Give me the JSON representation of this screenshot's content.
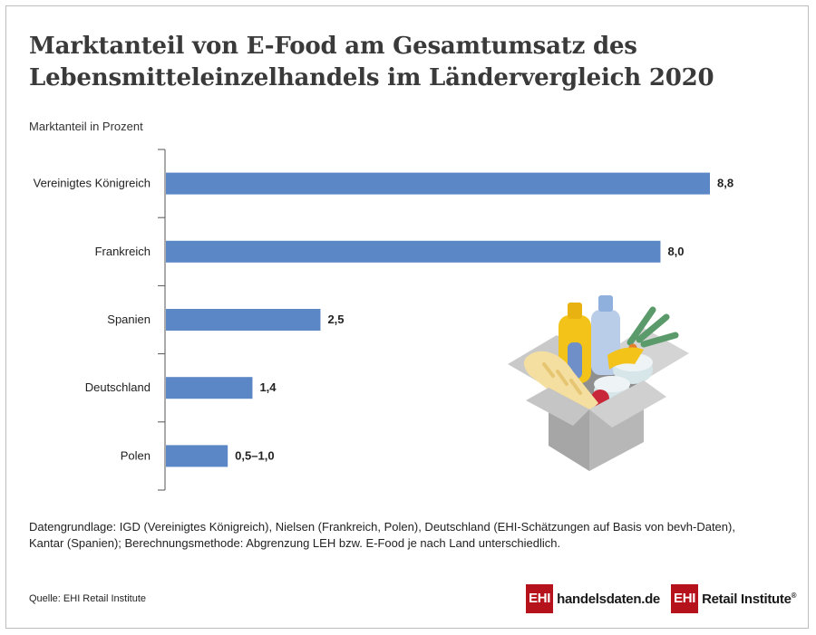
{
  "title_line1": "Marktanteil von E-Food am Gesamtumsatz des",
  "title_line2": "Lebensmitteleinzelhandels im Ländervergleich 2020",
  "ylabel": "Marktanteil in Prozent",
  "note_line1": "Datengrundlage: IGD (Vereinigtes Königreich), Nielsen (Frankreich, Polen), Deutschland (EHI-Schätzungen auf Basis von bevh-Daten),",
  "note_line2": "Kantar (Spanien); Berechnungsmethode: Abgrenzung LEH bzw. E-Food je nach Land unterschiedlich.",
  "source": "Quelle: EHI Retail Institute",
  "brand1": {
    "box": "EHI",
    "text": "handelsdaten.de"
  },
  "brand2": {
    "box": "EHI",
    "text": "Retail Institute",
    "mark": "®"
  },
  "colors": {
    "bar": "#5b87c6",
    "axis": "#555555",
    "brand_red": "#b5121b"
  },
  "illustration_icon": "grocery-box-icon",
  "chart_data": {
    "type": "bar",
    "orientation": "horizontal",
    "categories": [
      "Vereinigtes Königreich",
      "Frankreich",
      "Spanien",
      "Deutschland",
      "Polen"
    ],
    "values": [
      8.8,
      8.0,
      2.5,
      1.4,
      1.0
    ],
    "range_low": [
      null,
      null,
      null,
      null,
      0.5
    ],
    "labels": [
      "8,8",
      "8,0",
      "2,5",
      "1,4",
      "0,5–1,0"
    ],
    "xlim": [
      0,
      8.8
    ],
    "ylabel": "Marktanteil in Prozent",
    "grid": false
  }
}
